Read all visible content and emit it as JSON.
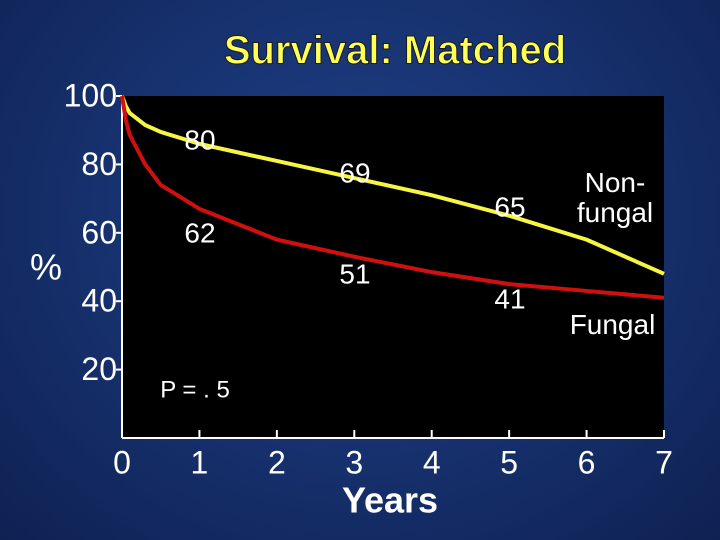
{
  "chart_data": {
    "type": "line",
    "title": "Survival: Matched",
    "xlabel": "Years",
    "ylabel": "%",
    "x": [
      0,
      0.05,
      0.1,
      0.3,
      0.5,
      1,
      2,
      3,
      4,
      5,
      6,
      7
    ],
    "series": [
      {
        "name": "Non-fungal",
        "color": "#f5f542",
        "values": [
          100,
          97,
          95,
          91.5,
          89.5,
          86,
          81,
          76,
          71,
          65,
          58,
          48
        ]
      },
      {
        "name": "Fungal",
        "color": "#d0100f",
        "values": [
          100,
          93,
          88.6,
          80,
          74,
          67,
          58,
          53,
          48.5,
          45,
          43,
          41
        ]
      }
    ],
    "xlim": [
      0,
      7
    ],
    "xticks": [
      0,
      1,
      2,
      3,
      4,
      5,
      6,
      7
    ],
    "ylim": [
      0,
      100
    ],
    "yticks": [
      20,
      40,
      60,
      80,
      100
    ],
    "annotations": [
      "80",
      "62",
      "69",
      "51",
      "65",
      "41",
      "P = . 5"
    ]
  }
}
